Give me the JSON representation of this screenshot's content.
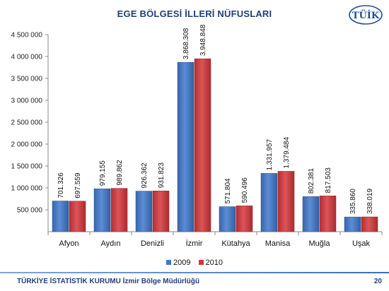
{
  "title": "EGE BÖLGESİ İLLERİ NÜFUSLARI",
  "logo_text": "TÜİK",
  "footer": {
    "organization": "TÜRKİYE İSTATİSTİK KURUMU İzmir Bölge Müdürlüğü",
    "page_number": "20"
  },
  "chart_data": {
    "type": "bar",
    "categories": [
      "Afyon",
      "Aydın",
      "Denizli",
      "İzmir",
      "Kütahya",
      "Manisa",
      "Muğla",
      "Uşak"
    ],
    "series": [
      {
        "name": "2009",
        "color": "#3f78cc",
        "values": [
          701326,
          979155,
          926362,
          3868308,
          571804,
          1331957,
          802381,
          335860
        ],
        "labels": [
          "701.326",
          "979.155",
          "926.362",
          "3.868.308",
          "571.804",
          "1.331.957",
          "802.381",
          "335.860"
        ]
      },
      {
        "name": "2010",
        "color": "#d6363a",
        "values": [
          697559,
          989862,
          931823,
          3948848,
          590496,
          1379484,
          817503,
          338019
        ],
        "labels": [
          "697.559",
          "989.862",
          "931.823",
          "3.948.848",
          "590.496",
          "1.379.484",
          "817.503",
          "338.019"
        ]
      }
    ],
    "ylim": [
      0,
      4500000
    ],
    "yticks": [
      {
        "value": 500000,
        "label": "500 000"
      },
      {
        "value": 1000000,
        "label": "1 000 000"
      },
      {
        "value": 1500000,
        "label": "1 500 000"
      },
      {
        "value": 2000000,
        "label": "2 000 000"
      },
      {
        "value": 2500000,
        "label": "2 500 000"
      },
      {
        "value": 3000000,
        "label": "3 000 000"
      },
      {
        "value": 3500000,
        "label": "3 500 000"
      },
      {
        "value": 4000000,
        "label": "4 000 000"
      },
      {
        "value": 4500000,
        "label": "4 500 000"
      }
    ],
    "legend_position": "bottom",
    "grid": false
  }
}
